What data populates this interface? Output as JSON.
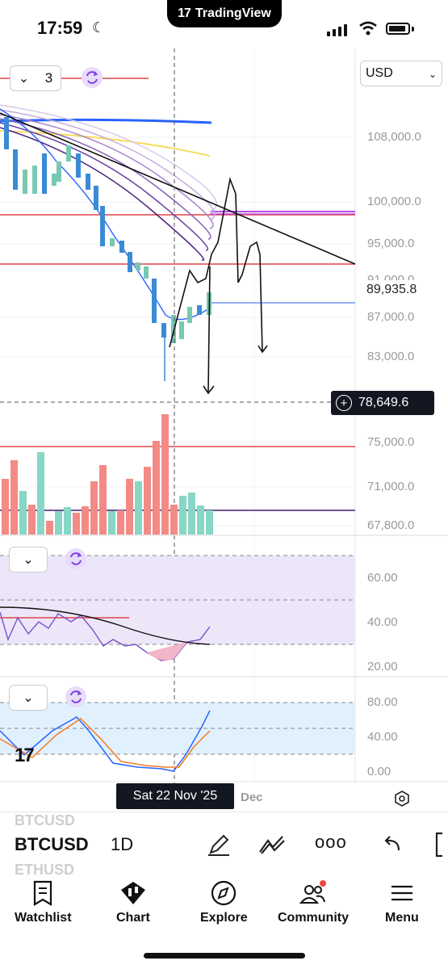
{
  "status_bar": {
    "time": "17:59",
    "app_pill": "TradingView"
  },
  "chart": {
    "currency": "USD",
    "pane1_count": "3",
    "price_axis": [
      "108,000.0",
      "100,000.0",
      "95,000.0",
      "91,000.0",
      "87,000.0",
      "83,000.0",
      "75,000.0",
      "71,000.0",
      "67,800.0"
    ],
    "last_price": "89,935.8",
    "crosshair_price": "78,649.6",
    "rsi_axis": [
      "60.00",
      "40.00",
      "20.00"
    ],
    "stoch_axis": [
      "80.00",
      "40.00",
      "0.00"
    ],
    "crosshair_date": "Sat 22 Nov '25",
    "next_month": "Dec"
  },
  "toolbar": {
    "symbol": "BTCUSD",
    "interval": "1D",
    "ghost_above": "BTCUSD",
    "ghost_below": "ETHUSD"
  },
  "bottom_nav": [
    {
      "label": "Watchlist",
      "icon": "watchlist-icon"
    },
    {
      "label": "Chart",
      "icon": "chart-icon"
    },
    {
      "label": "Explore",
      "icon": "compass-icon"
    },
    {
      "label": "Community",
      "icon": "community-icon"
    },
    {
      "label": "Menu",
      "icon": "menu-icon"
    }
  ]
}
